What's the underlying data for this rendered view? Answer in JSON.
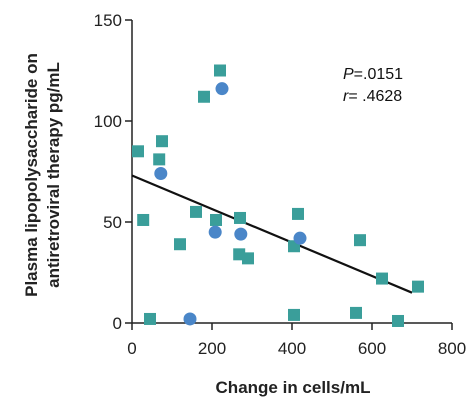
{
  "chart_data": {
    "type": "scatter",
    "xlabel": "Change in cells/mL",
    "ylabel_lines": [
      "Plasma lipopolysaccharide on",
      "antiretroviral therapy pg/mL"
    ],
    "xlim": [
      0,
      800
    ],
    "ylim": [
      0,
      150
    ],
    "x_ticks": [
      0,
      200,
      400,
      600,
      800
    ],
    "y_ticks": [
      0,
      50,
      100,
      150
    ],
    "grid": false,
    "colors": {
      "square": "#3a9e9a",
      "circle": "#4a86c8",
      "line": "#111111",
      "axis": "#222222"
    },
    "series": [
      {
        "marker": "square",
        "points": [
          {
            "x": 15,
            "y": 85
          },
          {
            "x": 28,
            "y": 51
          },
          {
            "x": 45,
            "y": 2
          },
          {
            "x": 68,
            "y": 81
          },
          {
            "x": 75,
            "y": 90
          },
          {
            "x": 120,
            "y": 39
          },
          {
            "x": 160,
            "y": 55
          },
          {
            "x": 180,
            "y": 112
          },
          {
            "x": 210,
            "y": 51
          },
          {
            "x": 220,
            "y": 125
          },
          {
            "x": 270,
            "y": 52
          },
          {
            "x": 268,
            "y": 34
          },
          {
            "x": 290,
            "y": 32
          },
          {
            "x": 405,
            "y": 38
          },
          {
            "x": 405,
            "y": 4
          },
          {
            "x": 415,
            "y": 54
          },
          {
            "x": 560,
            "y": 5
          },
          {
            "x": 570,
            "y": 41
          },
          {
            "x": 625,
            "y": 22
          },
          {
            "x": 665,
            "y": 1
          },
          {
            "x": 715,
            "y": 18
          }
        ]
      },
      {
        "marker": "circle",
        "points": [
          {
            "x": 72,
            "y": 74
          },
          {
            "x": 145,
            "y": 2
          },
          {
            "x": 208,
            "y": 45
          },
          {
            "x": 225,
            "y": 116
          },
          {
            "x": 272,
            "y": 44
          },
          {
            "x": 420,
            "y": 42
          }
        ]
      }
    ],
    "trendline": {
      "x": [
        0,
        700
      ],
      "y": [
        73,
        15
      ]
    },
    "annotation": {
      "p_label": "P",
      "p_value": "=.0151",
      "r_label": "r",
      "r_value": "= .4628"
    }
  }
}
